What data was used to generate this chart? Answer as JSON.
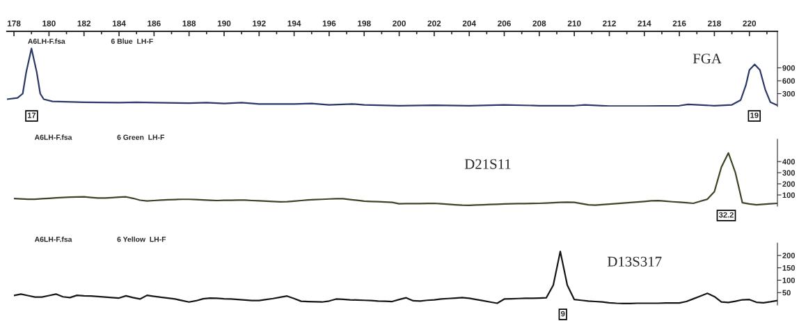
{
  "chart_data": [
    {
      "type": "line",
      "title": "FGA",
      "annotations": [
        "A6LH-F.fsa",
        "6 Blue  LH-F",
        "17",
        "19"
      ],
      "xlim": [
        177.6,
        221.6
      ],
      "xticks": [
        178,
        {
          "value": 179,
          "label": null
        },
        180,
        {
          "value": 181,
          "label": null
        },
        182,
        {
          "value": 183,
          "label": null
        },
        184,
        {
          "value": 185,
          "label": null
        },
        186,
        {
          "value": 187,
          "label": null
        },
        188,
        {
          "value": 189,
          "label": null
        },
        190,
        {
          "value": 191,
          "label": null
        },
        192,
        {
          "value": 193,
          "label": null
        },
        194,
        {
          "value": 195,
          "label": null
        },
        196,
        {
          "value": 197,
          "label": null
        },
        198,
        {
          "value": 199,
          "label": null
        },
        200,
        {
          "value": 201,
          "label": null
        },
        202,
        {
          "value": 203,
          "label": null
        },
        204,
        {
          "value": 205,
          "label": null
        },
        206,
        {
          "value": 207,
          "label": null
        },
        208,
        {
          "value": 209,
          "label": null
        },
        210,
        {
          "value": 211,
          "label": null
        },
        212,
        {
          "value": 213,
          "label": null
        },
        214,
        {
          "value": 215,
          "label": null
        },
        216,
        {
          "value": 217,
          "label": null
        },
        218,
        {
          "value": 219,
          "label": null
        },
        220,
        {
          "value": 221,
          "label": null
        }
      ],
      "ylim": [
        0,
        1750
      ],
      "yticks": [
        300,
        600,
        900
      ],
      "series": [
        {
          "color": "#2b3766",
          "x": [
            177.6,
            178.2,
            178.5,
            178.7,
            179.0,
            179.3,
            179.5,
            179.7,
            180.2,
            182,
            184,
            185,
            186,
            188,
            189,
            190,
            191,
            192,
            194,
            195,
            196,
            197.3,
            198,
            200,
            202,
            204,
            206,
            208,
            210,
            210.6,
            212,
            214,
            216,
            216.5,
            218,
            219,
            219.5,
            219.8,
            220.0,
            220.3,
            220.6,
            220.9,
            221.2,
            221.6
          ],
          "values": [
            170,
            200,
            300,
            800,
            1350,
            800,
            300,
            170,
            120,
            100,
            90,
            100,
            90,
            80,
            90,
            70,
            90,
            60,
            60,
            70,
            40,
            60,
            40,
            20,
            30,
            20,
            40,
            20,
            20,
            40,
            10,
            10,
            20,
            50,
            20,
            40,
            150,
            500,
            850,
            980,
            850,
            400,
            100,
            30
          ]
        }
      ]
    },
    {
      "type": "line",
      "title": "D21S11",
      "annotations": [
        "A6LH-F.fsa",
        "6 Green  LH-F",
        "32.2"
      ],
      "tick_labels": "y",
      "categories": [
        null,
        null,
        null,
        null,
        null,
        null,
        null,
        null,
        null,
        null,
        null,
        null,
        null,
        null,
        null,
        null,
        null,
        null,
        null,
        null,
        null,
        null,
        null,
        null,
        null,
        null,
        null,
        null,
        null,
        null,
        null,
        null,
        null,
        null,
        null,
        null,
        null,
        null,
        null,
        null,
        null,
        null,
        null,
        null,
        null,
        null,
        null,
        null,
        null,
        null,
        null,
        null,
        null,
        null,
        null,
        null,
        null,
        null,
        null,
        null,
        null,
        null,
        null,
        null,
        null,
        null,
        null,
        null,
        null,
        null,
        null,
        null,
        null,
        null,
        null,
        null,
        null,
        null,
        null,
        null,
        null,
        null,
        null,
        null,
        null,
        null,
        null,
        null,
        null,
        null,
        null,
        null,
        null,
        null,
        null,
        null,
        null,
        null,
        null,
        null,
        null,
        null,
        null,
        null,
        null,
        null,
        null,
        null,
        null,
        null
      ],
      "ylim": [
        0,
        600
      ],
      "yticks": [
        100,
        200,
        300,
        400
      ],
      "series": [
        {
          "color": "#3b4528",
          "values": [
            68,
            65,
            62,
            62,
            66,
            70,
            74,
            77,
            80,
            82,
            83,
            78,
            72,
            72,
            76,
            80,
            83,
            70,
            53,
            46,
            50,
            54,
            57,
            59,
            61,
            61,
            58,
            55,
            52,
            50,
            52,
            53,
            54,
            54,
            50,
            47,
            44,
            41,
            38,
            40,
            45,
            50,
            55,
            58,
            61,
            64,
            67,
            66,
            59,
            52,
            45,
            42,
            40,
            37,
            34,
            21,
            22,
            23,
            23,
            24,
            25,
            21,
            17,
            12,
            8,
            7,
            10,
            12,
            15,
            17,
            20,
            21,
            22,
            23,
            24,
            25,
            28,
            30,
            33,
            35,
            34,
            23,
            12,
            8,
            13,
            18,
            23,
            28,
            32,
            37,
            42,
            47,
            49,
            44,
            39,
            35,
            30,
            25,
            44,
            62,
            130,
            350,
            477,
            300,
            30,
            20,
            12,
            16,
            21,
            25
          ]
        }
      ]
    },
    {
      "type": "line",
      "title": "D13S317",
      "annotations": [
        "A6LH-F.fsa",
        "6 Yellow  LH-F",
        "9"
      ],
      "tick_labels": "y",
      "categories": [
        null,
        null,
        null,
        null,
        null,
        null,
        null,
        null,
        null,
        null,
        null,
        null,
        null,
        null,
        null,
        null,
        null,
        null,
        null,
        null,
        null,
        null,
        null,
        null,
        null,
        null,
        null,
        null,
        null,
        null,
        null,
        null,
        null,
        null,
        null,
        null,
        null,
        null,
        null,
        null,
        null,
        null,
        null,
        null,
        null,
        null,
        null,
        null,
        null,
        null,
        null,
        null,
        null,
        null,
        null,
        null,
        null,
        null,
        null,
        null,
        null,
        null,
        null,
        null,
        null,
        null,
        null,
        null,
        null,
        null,
        null,
        null,
        null,
        null,
        null,
        null,
        null,
        null,
        null,
        null,
        null,
        null,
        null,
        null,
        null,
        null,
        null,
        null,
        null,
        null,
        null,
        null,
        null,
        null,
        null,
        null,
        null,
        null,
        null,
        null,
        null,
        null,
        null,
        null,
        null,
        null,
        null,
        null,
        null,
        null
      ],
      "ylim": [
        0,
        250
      ],
      "yticks": [
        50,
        100,
        150,
        200
      ],
      "series": [
        {
          "color": "#151515",
          "values": [
            38,
            44,
            38,
            32,
            32,
            38,
            44,
            33,
            30,
            39,
            37,
            36,
            34,
            32,
            30,
            28,
            37,
            30,
            24,
            39,
            35,
            31,
            28,
            24,
            18,
            12,
            17,
            25,
            28,
            27,
            25,
            24,
            22,
            20,
            18,
            18,
            22,
            26,
            31,
            36,
            26,
            15,
            14,
            13,
            12,
            16,
            24,
            23,
            21,
            20,
            19,
            18,
            16,
            15,
            14,
            22,
            29,
            17,
            16,
            19,
            21,
            24,
            26,
            28,
            30,
            27,
            22,
            17,
            12,
            7,
            24,
            25,
            26,
            27,
            27,
            28,
            29,
            80,
            216,
            80,
            22,
            19,
            16,
            14,
            12,
            9,
            7,
            6,
            6,
            7,
            7,
            7,
            7,
            8,
            8,
            8,
            14,
            25,
            36,
            47,
            34,
            12,
            10,
            15,
            21,
            22,
            11,
            9,
            13,
            18
          ]
        }
      ]
    }
  ]
}
